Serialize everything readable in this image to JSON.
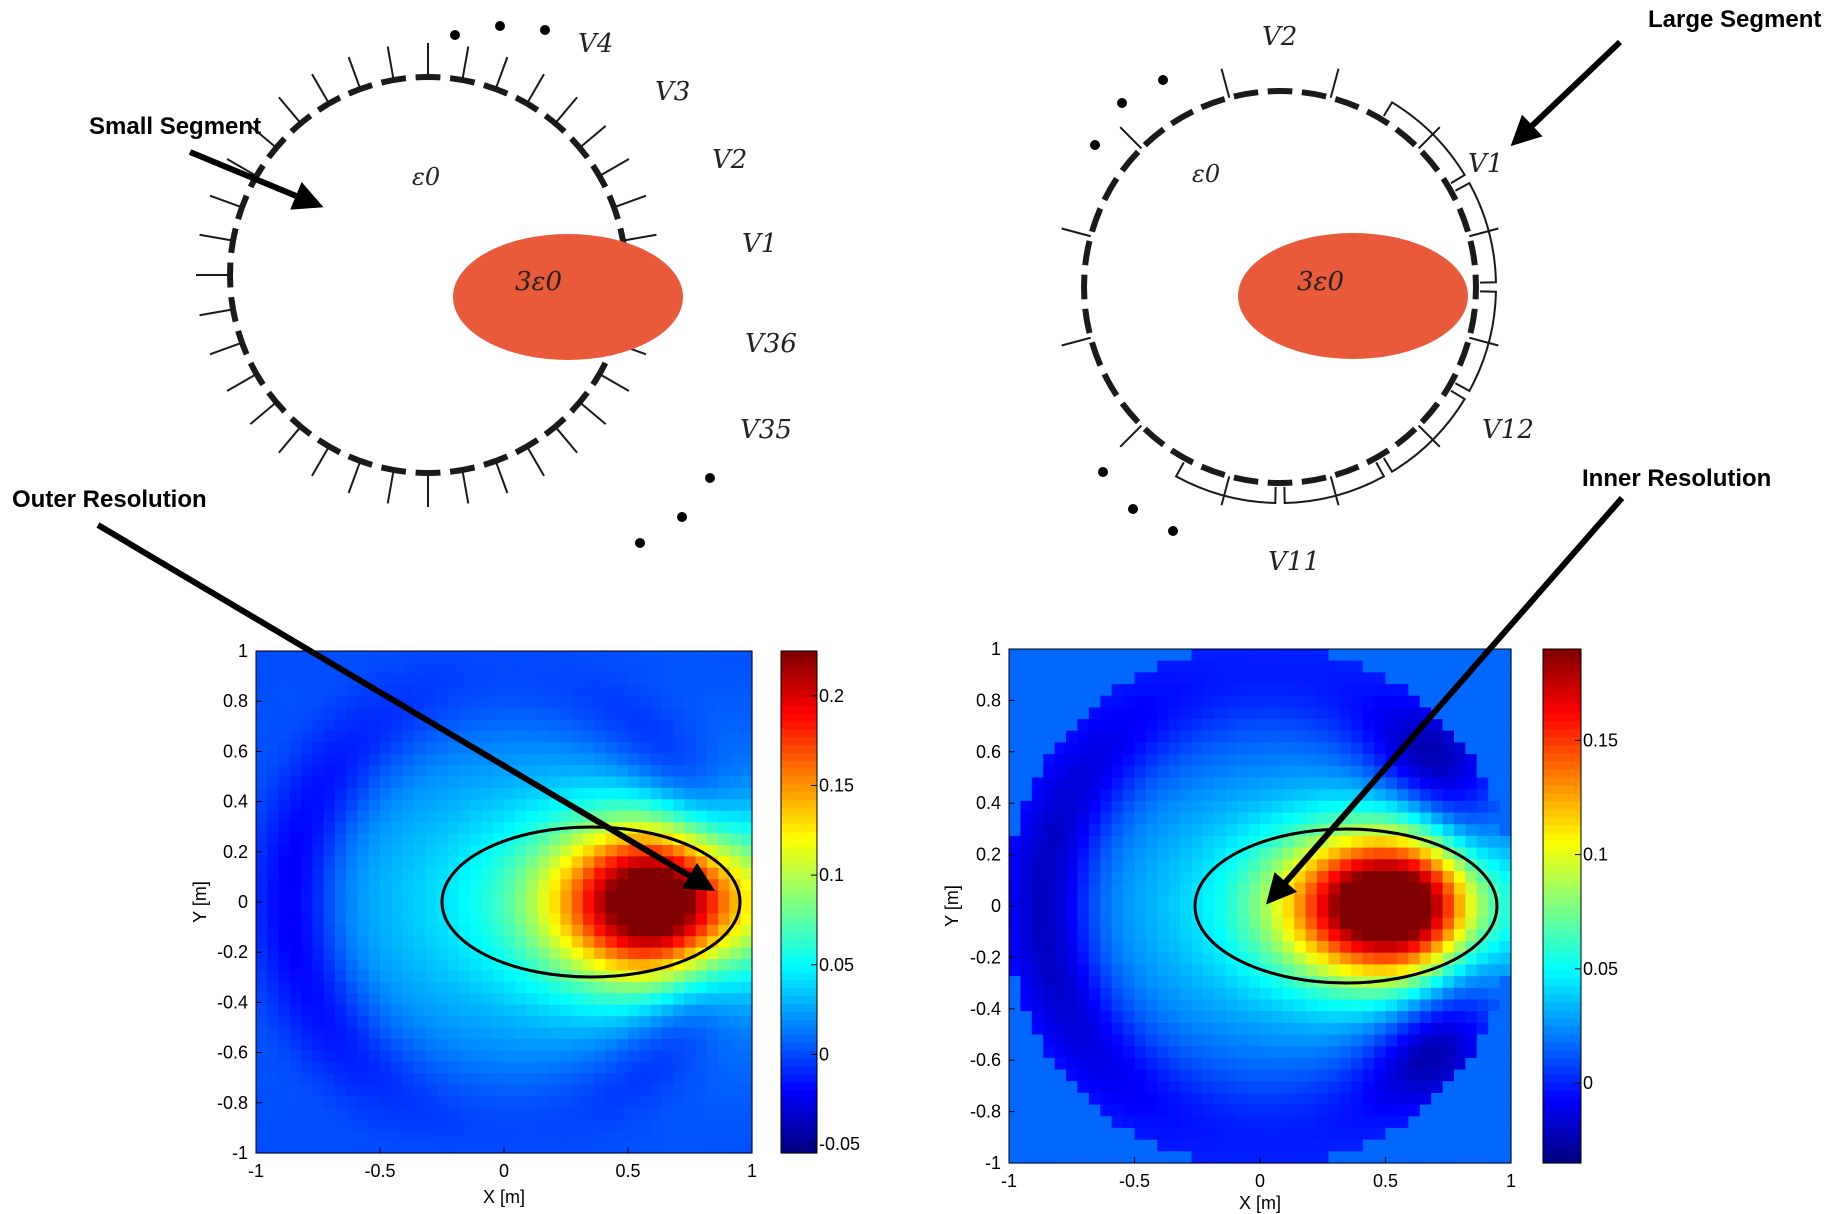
{
  "callouts": {
    "small_segment": "Small Segment",
    "large_segment": "Large Segment",
    "outer_resolution": "Outer Resolution",
    "inner_resolution": "Inner Resolution"
  },
  "left_diagram": {
    "background_permittivity": "ε0",
    "inclusion_permittivity": "3ε0",
    "electrode_labels": [
      "V4",
      "V3",
      "V2",
      "V1",
      "V36",
      "V35"
    ],
    "electrode_count": 36
  },
  "right_diagram": {
    "background_permittivity": "ε0",
    "inclusion_permittivity": "3ε0",
    "electrode_labels": [
      "V2",
      "V1",
      "V12",
      "V11"
    ],
    "electrode_count": 12
  },
  "plots": [
    {
      "xlabel": "X [m]",
      "ylabel": "Y [m]",
      "xticks": [
        "-1",
        "-0.5",
        "0",
        "0.5",
        "1"
      ],
      "yticks": [
        "1",
        "0.8",
        "0.6",
        "0.4",
        "0.2",
        "0",
        "-0.2",
        "-0.4",
        "-0.6",
        "-0.8",
        "-1"
      ],
      "colorbar_ticks": [
        "0.2",
        "0.15",
        "0.1",
        "0.05",
        "0",
        "-0.05"
      ],
      "colorbar_range": [
        -0.055,
        0.225
      ],
      "colormap": "jet",
      "ellipse": {
        "cx": 0.35,
        "cy": 0.0,
        "rx": 0.6,
        "ry": 0.3
      }
    },
    {
      "xlabel": "X [m]",
      "ylabel": "Y [m]",
      "xticks": [
        "-1",
        "-0.5",
        "0",
        "0.5",
        "1"
      ],
      "yticks": [
        "1",
        "0.8",
        "0.6",
        "0.4",
        "0.2",
        "0",
        "-0.2",
        "-0.4",
        "-0.6",
        "-0.8",
        "-1"
      ],
      "colorbar_ticks": [
        "0.15",
        "0.1",
        "0.05",
        "0"
      ],
      "colorbar_range": [
        -0.035,
        0.19
      ],
      "colormap": "jet",
      "ellipse": {
        "cx": 0.35,
        "cy": 0.0,
        "rx": 0.6,
        "ry": 0.3
      }
    }
  ],
  "colors": {
    "inclusion": "#e95a3a",
    "ring": "#1a1a1a",
    "arrow": "#000000"
  }
}
